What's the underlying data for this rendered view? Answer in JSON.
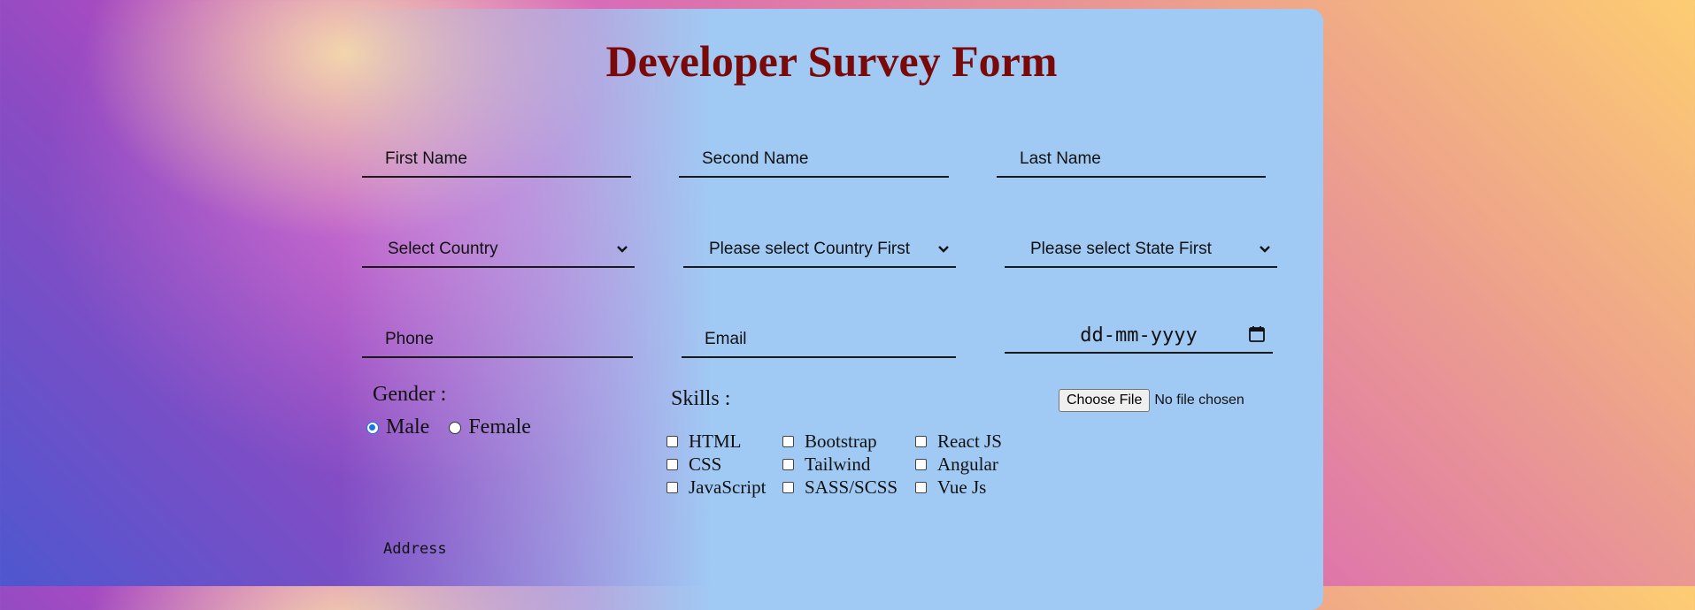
{
  "form": {
    "title": "Developer Survey Form",
    "first_name_placeholder": "First Name",
    "second_name_placeholder": "Second Name",
    "last_name_placeholder": "Last Name",
    "country_select": "Select Country",
    "state_select": "Please select Country First",
    "city_select": "Please select State First",
    "phone_placeholder": "Phone",
    "email_placeholder": "Email",
    "date_placeholder": "dd-mm-yyyy",
    "gender_label": "Gender :",
    "gender_options": [
      "Male",
      "Female"
    ],
    "gender_selected": "Male",
    "skills_label": "Skills :",
    "skills": [
      "HTML",
      "Bootstrap",
      "React JS",
      "CSS",
      "Tailwind",
      "Angular",
      "JavaScript",
      "SASS/SCSS",
      "Vue Js"
    ],
    "file_button": "Choose File",
    "file_status": "No file chosen",
    "address_placeholder": "Address"
  },
  "icons": {
    "chevron": "chevron-down-icon",
    "calendar": "calendar-icon"
  },
  "colors": {
    "title": "#7a0a0a",
    "card": "#a0caf4",
    "radio_accent": "#1a73e8"
  }
}
